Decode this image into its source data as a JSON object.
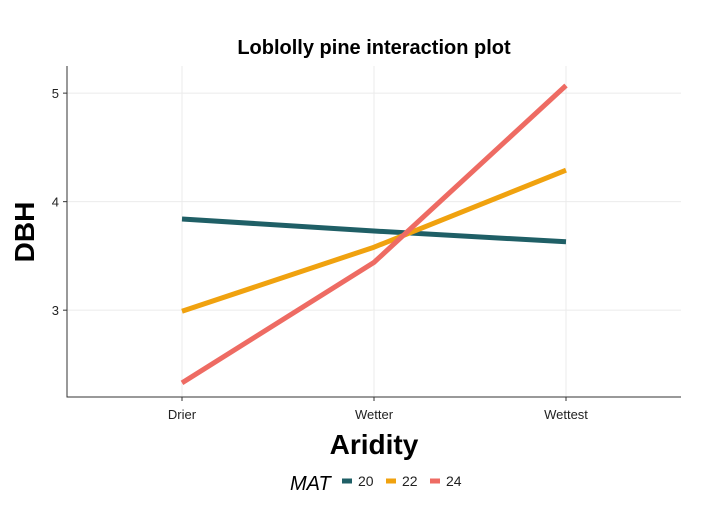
{
  "chart_data": {
    "type": "line",
    "title": "Loblolly pine interaction plot",
    "xlabel": "Aridity",
    "ylabel": "DBH",
    "categories": [
      "Drier",
      "Wetter",
      "Wettest"
    ],
    "ylim": [
      2.2,
      5.25
    ],
    "yticks": [
      3,
      4,
      5
    ],
    "grid": true,
    "legend": {
      "title": "MAT",
      "position": "bottom"
    },
    "series": [
      {
        "name": "20",
        "values": [
          3.84,
          3.73,
          3.63
        ],
        "color": "#1f5f66"
      },
      {
        "name": "22",
        "values": [
          2.99,
          3.58,
          4.29
        ],
        "color": "#f0a20f"
      },
      {
        "name": "24",
        "values": [
          2.33,
          3.44,
          5.07
        ],
        "color": "#ee6b63"
      }
    ]
  }
}
